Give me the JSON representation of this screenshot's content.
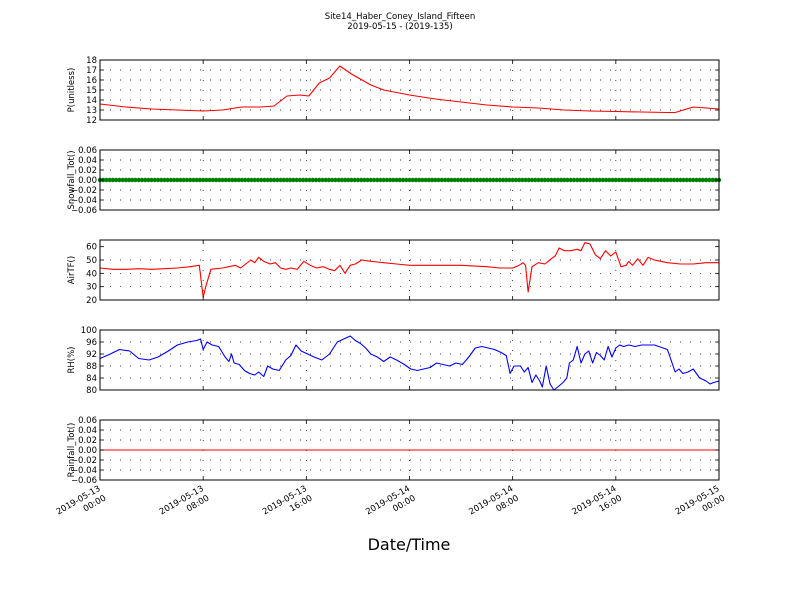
{
  "figure": {
    "title_line1": "Site14_Haber_Coney_Island_Fifteen",
    "title_line2": "2019-05-15 - (2019-135)",
    "xlabel": "Date/Time",
    "x_tick_labels": [
      [
        "2019-05-13",
        "00:00"
      ],
      [
        "2019-05-13",
        "08:00"
      ],
      [
        "2019-05-13",
        "16:00"
      ],
      [
        "2019-05-14",
        "00:00"
      ],
      [
        "2019-05-14",
        "08:00"
      ],
      [
        "2019-05-14",
        "16:00"
      ],
      [
        "2019-05-15",
        "00:00"
      ]
    ]
  },
  "chart_data": [
    {
      "type": "line",
      "ylabel": "P(unitless)",
      "color": "#ff0000",
      "ylim": [
        12,
        18
      ],
      "yticks": [
        12,
        13,
        14,
        15,
        16,
        17,
        18
      ],
      "ytick_labels": [
        "12",
        "13",
        "14",
        "15",
        "16",
        "17",
        "18"
      ],
      "grid": true,
      "x_hours": [
        0,
        2,
        4,
        6,
        8,
        9.5,
        11,
        12.5,
        13.5,
        14.5,
        15.5,
        16.2,
        17,
        17.8,
        18.6,
        19.5,
        21,
        22,
        24,
        26,
        28,
        30,
        32,
        34,
        36,
        38,
        40,
        42,
        44,
        44.6,
        46,
        48
      ],
      "values": [
        13.6,
        13.3,
        13.1,
        13.0,
        12.9,
        13.0,
        13.3,
        13.3,
        13.4,
        14.4,
        14.5,
        14.4,
        15.7,
        16.2,
        17.4,
        16.6,
        15.5,
        15.0,
        14.5,
        14.1,
        13.8,
        13.5,
        13.3,
        13.2,
        13.0,
        12.9,
        12.85,
        12.8,
        12.75,
        12.75,
        13.3,
        13.1
      ]
    },
    {
      "type": "scatter",
      "ylabel": "Snowfall_Tot()",
      "color": "#008000",
      "ylim": [
        -0.06,
        0.06
      ],
      "yticks": [
        -0.06,
        -0.04,
        -0.02,
        0.0,
        0.02,
        0.04,
        0.06
      ],
      "ytick_labels": [
        "−0.06",
        "−0.04",
        "−0.02",
        "0.00",
        "0.02",
        "0.04",
        "0.06"
      ],
      "grid": true,
      "x_range_hours": [
        0,
        48
      ],
      "constant_value": 0.0,
      "note_points_every_hours": 0.25
    },
    {
      "type": "line",
      "ylabel": "AirTF()",
      "color": "#ff0000",
      "ylim": [
        20,
        65
      ],
      "yticks": [
        20,
        30,
        40,
        50,
        60
      ],
      "ytick_labels": [
        "20",
        "30",
        "40",
        "50",
        "60"
      ],
      "grid": true,
      "x_hours": [
        0,
        1,
        2,
        3,
        4,
        5,
        6,
        7,
        7.7,
        7.9,
        8.0,
        8.2,
        8.6,
        9.5,
        10.5,
        10.9,
        11.3,
        11.7,
        12,
        12.3,
        12.7,
        13.2,
        13.6,
        14.0,
        14.4,
        14.8,
        15.3,
        15.8,
        16.3,
        16.8,
        17.3,
        17.8,
        18.2,
        18.6,
        19,
        19.4,
        19.8,
        20.3,
        21,
        22,
        23,
        24,
        26,
        28,
        30,
        31,
        32,
        32.5,
        32.8,
        33.0,
        33.2,
        33.5,
        34,
        34.5,
        35,
        35.3,
        35.6,
        36,
        36.5,
        37,
        37.3,
        37.6,
        38,
        38.4,
        38.8,
        39.2,
        39.6,
        40,
        40.4,
        40.8,
        41,
        41.3,
        41.7,
        42.1,
        42.5,
        43,
        43.5,
        44,
        45,
        46,
        47,
        48
      ],
      "values": [
        44,
        43,
        43,
        43.5,
        43,
        43.5,
        44,
        45,
        46,
        30,
        22,
        30,
        43,
        44,
        46,
        44,
        47,
        50,
        48,
        52,
        49,
        47,
        48,
        44,
        43,
        44,
        43,
        49,
        46,
        44,
        45,
        43,
        42,
        46,
        40,
        46,
        47,
        50,
        49,
        48,
        47,
        46,
        46,
        46,
        45,
        44,
        44,
        46,
        48,
        46,
        26,
        45,
        48,
        47,
        51,
        53,
        59,
        57,
        57,
        58,
        57,
        63,
        62,
        54,
        51,
        57,
        53,
        56,
        45,
        46,
        49,
        46,
        51,
        46,
        52,
        50,
        49,
        48,
        47,
        47,
        48,
        48
      ]
    },
    {
      "type": "line",
      "ylabel": "RH(%)",
      "color": "#0000ff",
      "ylim": [
        80,
        100
      ],
      "yticks": [
        80,
        84,
        88,
        92,
        96,
        100
      ],
      "ytick_labels": [
        "80",
        "84",
        "88",
        "92",
        "96",
        "100"
      ],
      "grid": true,
      "x_hours": [
        0,
        0.8,
        1.5,
        2.3,
        3.0,
        3.8,
        4.5,
        5.3,
        6.0,
        6.8,
        7.5,
        7.8,
        8.0,
        8.3,
        8.7,
        9.2,
        9.7,
        10.0,
        10.2,
        10.4,
        10.8,
        11.2,
        11.6,
        12.0,
        12.3,
        12.7,
        13.0,
        13.4,
        13.9,
        14.4,
        14.8,
        15.2,
        15.6,
        16.1,
        16.6,
        17.2,
        17.8,
        18.4,
        18.9,
        19.4,
        19.8,
        20.2,
        20.6,
        21,
        21.5,
        22,
        22.5,
        23,
        23.6,
        24.1,
        24.6,
        25.1,
        25.6,
        26.1,
        26.6,
        27.1,
        27.6,
        28.1,
        28.6,
        29.1,
        29.6,
        30.1,
        30.6,
        31.1,
        31.5,
        31.8,
        32.1,
        32.4,
        32.6,
        32.9,
        33.2,
        33.5,
        33.8,
        34.1,
        34.3,
        34.6,
        34.9,
        35.2,
        35.5,
        35.9,
        36.2,
        36.4,
        36.7,
        37.0,
        37.3,
        37.6,
        37.9,
        38.2,
        38.5,
        38.8,
        39.1,
        39.4,
        39.7,
        40.0,
        40.3,
        40.6,
        41.0,
        41.5,
        42,
        43,
        44,
        44.6,
        44.9,
        45.2,
        45.6,
        46,
        46.5,
        47,
        47.3,
        47.6,
        48
      ],
      "values": [
        90.5,
        92,
        93.5,
        93,
        90.5,
        90,
        91,
        93,
        95,
        96,
        96.5,
        97,
        93.5,
        96,
        95,
        94.5,
        91,
        89.5,
        92,
        89,
        88.5,
        86.5,
        85.5,
        85,
        86,
        84.5,
        88,
        87,
        86.5,
        90,
        91.5,
        95,
        93,
        92,
        91,
        90,
        92,
        96,
        97,
        98,
        96.5,
        95.5,
        94,
        92,
        91,
        89.5,
        91,
        90,
        88.5,
        87,
        86.5,
        87,
        87.5,
        89,
        88.5,
        88,
        89,
        88.5,
        91,
        94,
        94.5,
        94,
        93.5,
        92.5,
        91.5,
        85.5,
        88,
        88,
        88,
        86,
        87.5,
        82.5,
        85,
        83,
        81,
        88,
        82,
        80,
        81,
        82.5,
        84,
        89,
        90,
        94.5,
        89,
        92,
        93,
        89,
        92.5,
        91.5,
        90,
        94.5,
        91,
        94,
        95,
        94.5,
        95,
        94.5,
        95,
        95,
        93.5,
        86,
        87,
        85.5,
        86,
        87,
        84,
        83,
        82,
        82.5,
        83
      ]
    },
    {
      "type": "line",
      "ylabel": "Rainfall_Tot()",
      "color": "#ff0000",
      "ylim": [
        -0.06,
        0.06
      ],
      "yticks": [
        -0.06,
        -0.04,
        -0.02,
        0.0,
        0.02,
        0.04,
        0.06
      ],
      "ytick_labels": [
        "−0.06",
        "−0.04",
        "−0.02",
        "0.00",
        "0.02",
        "0.04",
        "0.06"
      ],
      "grid": true,
      "x_hours": [
        0,
        48
      ],
      "values": [
        0,
        0
      ]
    }
  ]
}
